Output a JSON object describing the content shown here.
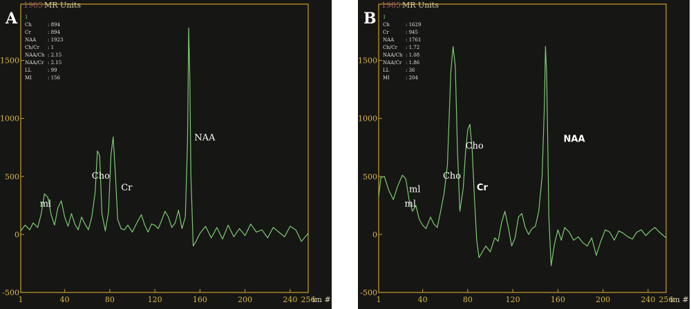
{
  "chart_data": [
    {
      "type": "line",
      "panel_label": "A",
      "ylabel": "MR Units",
      "ylabel_code": "1985",
      "xlabel": "im #",
      "xlim": [
        1,
        256
      ],
      "ylim": [
        -500,
        1985
      ],
      "x_ticks": [
        "1",
        "40",
        "80",
        "120",
        "160",
        "200",
        "240",
        "256"
      ],
      "y_ticks": [
        "-500",
        "0",
        "500",
        "1000",
        "1500"
      ],
      "y_tick_values": [
        -500,
        0,
        500,
        1000,
        1500
      ],
      "info": [
        {
          "key": "1",
          "value": ""
        },
        {
          "key": "Ch",
          "value": ": 894"
        },
        {
          "key": "Cr",
          "value": ": 894"
        },
        {
          "key": "NAA",
          "value": ": 1923"
        },
        {
          "key": "Ch/Cr",
          "value": ": 1"
        },
        {
          "key": "NAA/Ch",
          "value": ": 2.15"
        },
        {
          "key": "NAA/Cr",
          "value": ": 2.15"
        },
        {
          "key": "LL",
          "value": ": 99"
        },
        {
          "key": "MI",
          "value": ": 156"
        }
      ],
      "labels": [
        {
          "text": "ml",
          "x": 18,
          "y": 240,
          "bold": false
        },
        {
          "text": "Cho",
          "x": 64,
          "y": 480,
          "bold": false
        },
        {
          "text": "Cr",
          "x": 90,
          "y": 380,
          "bold": false
        },
        {
          "text": "NAA",
          "x": 155,
          "y": 810,
          "bold": false
        }
      ],
      "series": [
        {
          "color": "#7ecb74",
          "x": [
            1,
            5,
            9,
            12,
            16,
            19,
            22,
            25,
            28,
            31,
            34,
            37,
            40,
            43,
            46,
            49,
            52,
            55,
            58,
            61,
            64,
            67,
            69,
            71,
            73,
            76,
            79,
            81,
            83,
            85,
            87,
            90,
            93,
            96,
            100,
            104,
            108,
            111,
            114,
            117,
            120,
            123,
            126,
            129,
            132,
            135,
            138,
            141,
            144,
            147,
            149,
            150,
            151,
            152,
            154,
            157,
            160,
            165,
            170,
            175,
            180,
            185,
            190,
            195,
            200,
            205,
            210,
            215,
            220,
            225,
            230,
            235,
            240,
            245,
            250,
            256
          ],
          "y": [
            30,
            80,
            40,
            100,
            60,
            170,
            350,
            320,
            170,
            80,
            230,
            290,
            150,
            70,
            180,
            90,
            40,
            150,
            90,
            40,
            150,
            360,
            720,
            680,
            180,
            30,
            200,
            680,
            840,
            520,
            130,
            50,
            40,
            80,
            20,
            100,
            170,
            80,
            20,
            90,
            80,
            50,
            120,
            200,
            150,
            60,
            100,
            210,
            50,
            150,
            800,
            1780,
            1350,
            500,
            -100,
            -50,
            10,
            70,
            -30,
            60,
            -40,
            80,
            -20,
            50,
            -10,
            90,
            20,
            40,
            -30,
            60,
            20,
            -20,
            70,
            40,
            -60,
            10
          ]
        }
      ]
    },
    {
      "type": "line",
      "panel_label": "B",
      "ylabel": "MR Units",
      "ylabel_code": "1985",
      "xlabel": "im #",
      "xlim": [
        1,
        256
      ],
      "ylim": [
        -500,
        1985
      ],
      "x_ticks": [
        "1",
        "40",
        "80",
        "120",
        "160",
        "200",
        "240",
        "256"
      ],
      "y_ticks": [
        "-500",
        "0",
        "500",
        "1000",
        "1500"
      ],
      "y_tick_values": [
        -500,
        0,
        500,
        1000,
        1500
      ],
      "info": [
        {
          "key": "1",
          "value": ""
        },
        {
          "key": "Ch",
          "value": ": 1629"
        },
        {
          "key": "Cr",
          "value": ": 945"
        },
        {
          "key": "NAA",
          "value": ": 1761"
        },
        {
          "key": "Ch/Cr",
          "value": ": 1.72"
        },
        {
          "key": "NAA/Ch",
          "value": ": 1.08"
        },
        {
          "key": "NAA/Cr",
          "value": ": 1.86"
        },
        {
          "key": "LL",
          "value": ": 36"
        },
        {
          "key": "MI",
          "value": ": 204"
        }
      ],
      "labels": [
        {
          "text": "ml",
          "x": 28,
          "y": 365,
          "bold": false
        },
        {
          "text": "ml",
          "x": 24,
          "y": 240,
          "bold": false
        },
        {
          "text": "Cho",
          "x": 58,
          "y": 480,
          "bold": false
        },
        {
          "text": "Cho",
          "x": 78,
          "y": 740,
          "bold": false
        },
        {
          "text": "Cr",
          "x": 88,
          "y": 380,
          "bold": true
        },
        {
          "text": "NAA",
          "x": 165,
          "y": 800,
          "bold": true
        }
      ],
      "series": [
        {
          "color": "#7ecb74",
          "x": [
            1,
            3,
            6,
            10,
            14,
            18,
            22,
            25,
            28,
            31,
            34,
            37,
            40,
            43,
            47,
            50,
            53,
            56,
            59,
            62,
            65,
            67,
            69,
            71,
            73,
            76,
            78,
            80,
            82,
            84,
            86,
            88,
            90,
            93,
            96,
            100,
            104,
            107,
            110,
            113,
            116,
            119,
            122,
            125,
            128,
            131,
            134,
            137,
            140,
            143,
            146,
            148,
            149,
            150,
            151,
            152,
            154,
            157,
            160,
            163,
            166,
            170,
            174,
            178,
            182,
            186,
            190,
            194,
            198,
            202,
            206,
            210,
            214,
            218,
            222,
            226,
            230,
            234,
            238,
            242,
            246,
            250,
            256
          ],
          "y": [
            330,
            490,
            500,
            380,
            300,
            420,
            510,
            480,
            300,
            200,
            250,
            130,
            80,
            50,
            150,
            90,
            60,
            200,
            350,
            600,
            1400,
            1620,
            1450,
            700,
            200,
            400,
            700,
            900,
            950,
            720,
            300,
            -50,
            -200,
            -150,
            -100,
            -150,
            -30,
            -60,
            100,
            200,
            60,
            -100,
            -30,
            150,
            180,
            60,
            0,
            50,
            70,
            200,
            500,
            1100,
            1620,
            1380,
            800,
            150,
            -270,
            -80,
            40,
            -50,
            60,
            20,
            -50,
            -20,
            -70,
            -100,
            -30,
            -180,
            -60,
            40,
            20,
            -50,
            30,
            10,
            -20,
            -40,
            20,
            40,
            -10,
            30,
            60,
            20,
            -30
          ]
        }
      ]
    }
  ]
}
